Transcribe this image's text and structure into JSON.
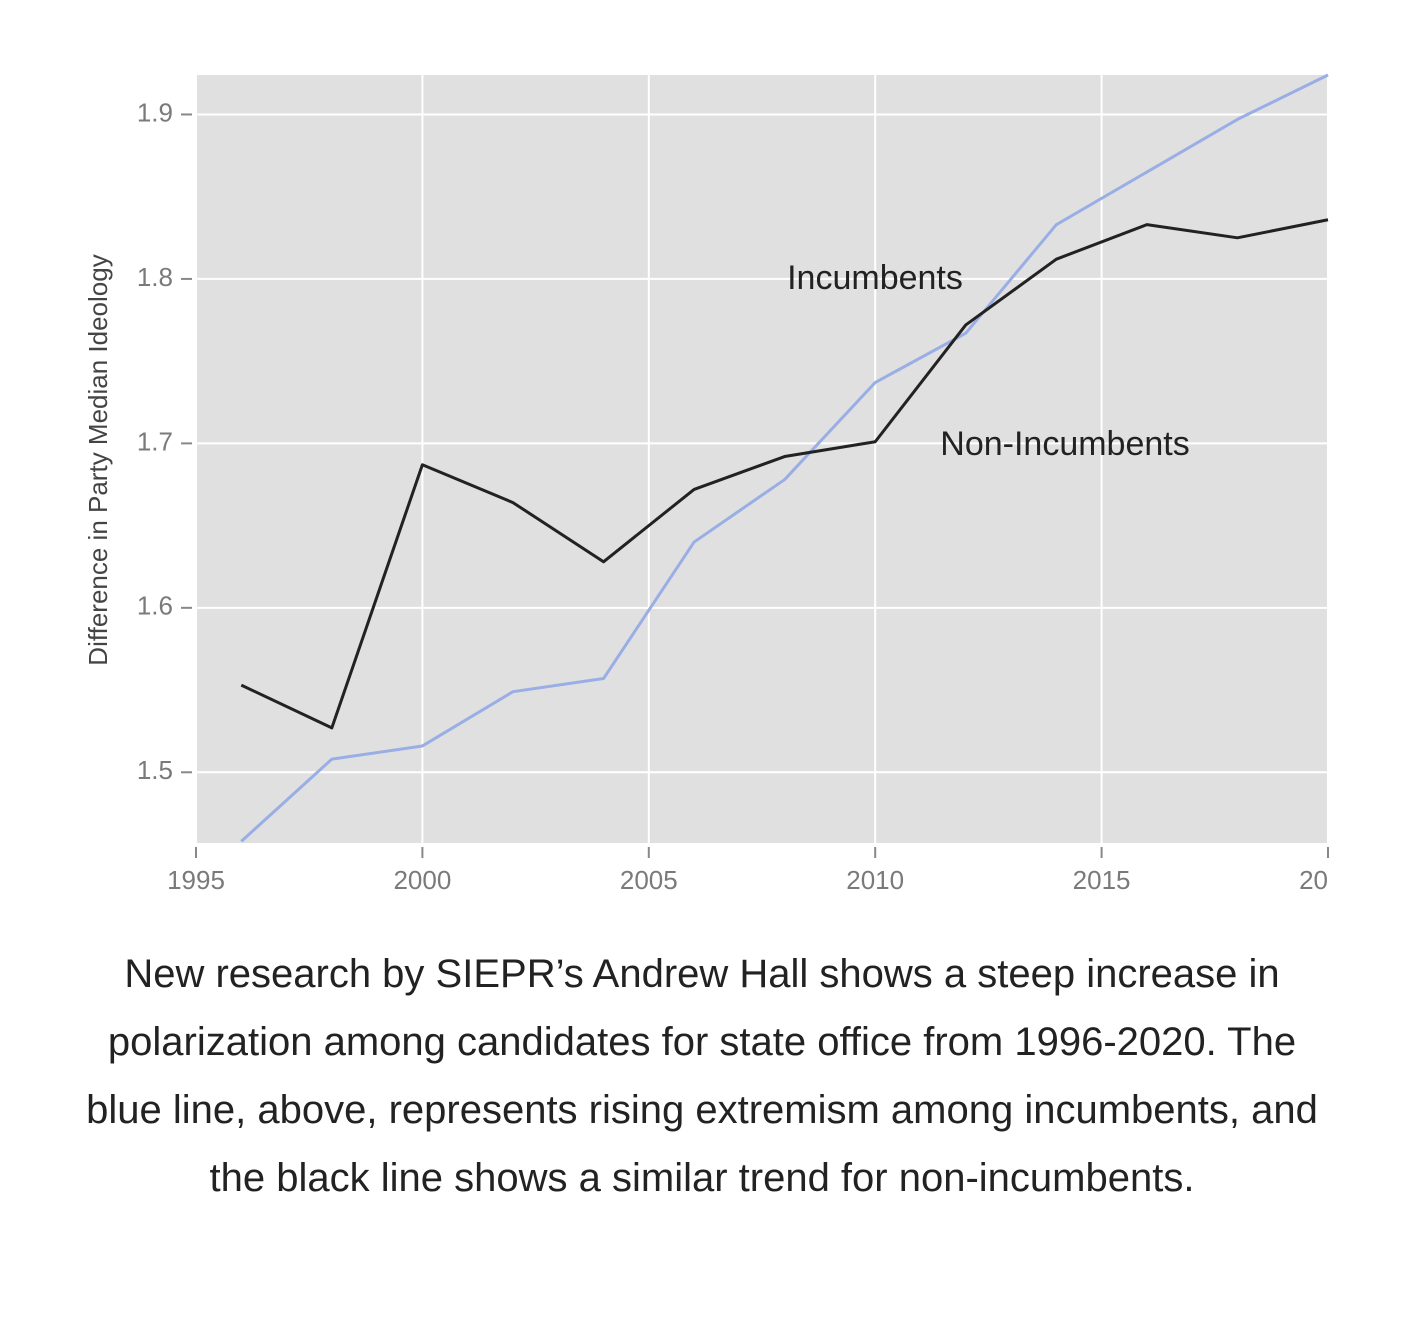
{
  "chart_data": {
    "type": "line",
    "y_label": "Difference in Party Median Ideology",
    "x": [
      1996,
      1998,
      2000,
      2002,
      2004,
      2006,
      2008,
      2010,
      2012,
      2014,
      2016,
      2018,
      2020
    ],
    "series": [
      {
        "name": "Incumbents",
        "color": "#9aaee6",
        "values": [
          1.458,
          1.508,
          1.516,
          1.549,
          1.557,
          1.64,
          1.678,
          1.737,
          1.767,
          1.833,
          1.865,
          1.897,
          1.924
        ]
      },
      {
        "name": "Non-Incumbents",
        "color": "#222222",
        "values": [
          1.553,
          1.527,
          1.687,
          1.664,
          1.628,
          1.672,
          1.692,
          1.701,
          1.772,
          1.812,
          1.833,
          1.825,
          1.836
        ]
      }
    ],
    "xlim": [
      1995,
      2020
    ],
    "xticks": [
      1995,
      2000,
      2005,
      2010,
      2015,
      {
        "value": 2020,
        "label": "20"
      }
    ],
    "ylim": [
      1.457,
      1.924
    ],
    "yticks": [
      1.5,
      1.6,
      1.7,
      1.8,
      1.9
    ],
    "grid": true,
    "caption": "New research by SIEPR’s Andrew Hall shows a steep increase in polarization among candidates for state office from 1996-2020. The blue line, above, represents rising extremism among incumbents, and the black line shows a similar trend for non-incumbents."
  }
}
